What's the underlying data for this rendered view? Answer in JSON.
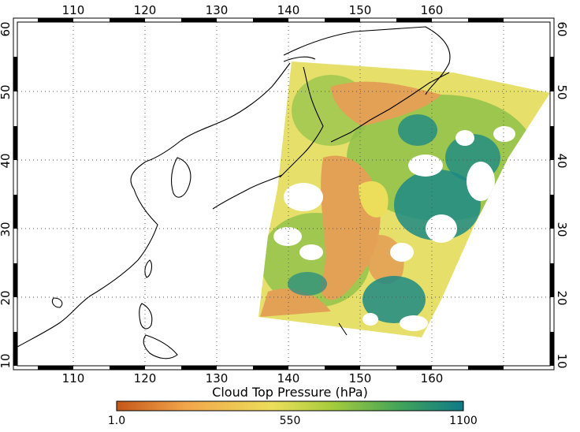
{
  "map": {
    "lon_ticks": [
      "110",
      "120",
      "130",
      "140",
      "150",
      "160"
    ],
    "lat_ticks": [
      "60",
      "50",
      "40",
      "30",
      "20",
      "10"
    ],
    "grid": "dotted"
  },
  "colorbar": {
    "title": "Cloud Top Pressure (hPa)",
    "min_label": "1.0",
    "mid_label": "550",
    "max_label": "1100",
    "colors": [
      "#c4561a",
      "#f2a64b",
      "#ecde5a",
      "#a6cc3c",
      "#41a35a",
      "#0f7a88"
    ]
  },
  "palette": {
    "cloud_orange": "#e3a156",
    "cloud_yellow": "#e6e06a",
    "cloud_green": "#8fc14a",
    "cloud_teal": "#1d8a85",
    "clear_sky": "#ffffff"
  }
}
